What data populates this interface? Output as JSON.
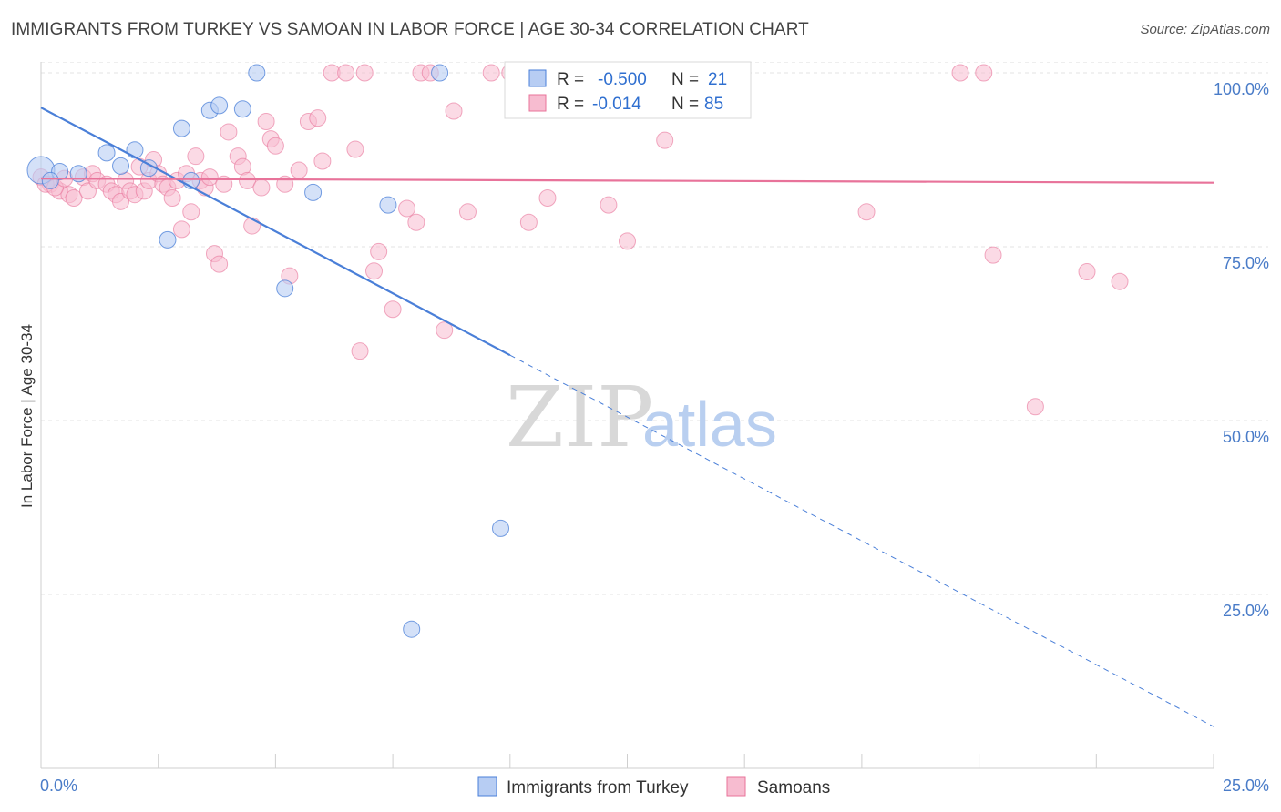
{
  "title": "IMMIGRANTS FROM TURKEY VS SAMOAN IN LABOR FORCE | AGE 30-34 CORRELATION CHART",
  "source": "Source: ZipAtlas.com",
  "watermark": {
    "zip": "ZIP",
    "atlas": "atlas"
  },
  "colors": {
    "turkey": "#4a7fd8",
    "turkey_fill": "#b7cdf3",
    "samoan": "#e8739a",
    "samoan_fill": "#f7bcd0",
    "axis_tick": "#4a7cc8"
  },
  "legend": {
    "rows": [
      {
        "r_label": "R = ",
        "r_value": "-0.500",
        "n_label": "N = ",
        "n_value": "21"
      },
      {
        "r_label": "R = ",
        "r_value": "-0.014",
        "n_label": "N = ",
        "n_value": "85"
      }
    ]
  },
  "chart_data": {
    "type": "scatter",
    "xlabel": "",
    "ylabel": "In Labor Force | Age 30-34",
    "xlim": [
      0,
      25
    ],
    "ylim": [
      0,
      104
    ],
    "x_tick_labels": [
      "0.0%",
      "25.0%"
    ],
    "y_ticks": [
      25,
      50,
      75,
      100
    ],
    "y_tick_labels": [
      "25.0%",
      "50.0%",
      "75.0%",
      "100.0%"
    ],
    "grid": true,
    "legend_position": "top-center",
    "series": [
      {
        "name": "Immigrants from Turkey",
        "points": [
          [
            0.0,
            86.0
          ],
          [
            0.4,
            85.8
          ],
          [
            0.8,
            85.5
          ],
          [
            1.4,
            88.5
          ],
          [
            1.7,
            86.6
          ],
          [
            2.0,
            88.9
          ],
          [
            2.3,
            86.3
          ],
          [
            2.7,
            76.0
          ],
          [
            3.0,
            92.0
          ],
          [
            3.2,
            84.5
          ],
          [
            3.6,
            94.6
          ],
          [
            3.8,
            95.3
          ],
          [
            4.3,
            94.8
          ],
          [
            4.6,
            100.0
          ],
          [
            5.2,
            69.0
          ],
          [
            5.8,
            82.8
          ],
          [
            7.4,
            81.0
          ],
          [
            8.5,
            100.0
          ],
          [
            9.8,
            34.5
          ],
          [
            7.9,
            20.0
          ],
          [
            0.2,
            84.5
          ]
        ],
        "trend": {
          "x0": 0,
          "y0": 95.0,
          "x_solid_end": 10.0,
          "x_end": 25.0,
          "y_end": 6.0
        }
      },
      {
        "name": "Samoans",
        "points": [
          [
            0.0,
            85.0
          ],
          [
            0.2,
            84.0
          ],
          [
            0.4,
            83.0
          ],
          [
            0.6,
            82.5
          ],
          [
            0.7,
            82.0
          ],
          [
            0.9,
            85.0
          ],
          [
            1.0,
            83.0
          ],
          [
            1.1,
            85.5
          ],
          [
            1.2,
            84.5
          ],
          [
            1.4,
            84.0
          ],
          [
            1.5,
            83.0
          ],
          [
            1.6,
            82.5
          ],
          [
            1.7,
            81.5
          ],
          [
            1.8,
            84.5
          ],
          [
            1.9,
            83.0
          ],
          [
            2.0,
            82.5
          ],
          [
            2.1,
            86.5
          ],
          [
            2.2,
            83.0
          ],
          [
            2.3,
            84.5
          ],
          [
            2.4,
            87.5
          ],
          [
            2.5,
            85.5
          ],
          [
            2.6,
            84.0
          ],
          [
            2.7,
            83.5
          ],
          [
            2.8,
            82.0
          ],
          [
            2.9,
            84.5
          ],
          [
            3.0,
            77.5
          ],
          [
            3.1,
            85.5
          ],
          [
            3.2,
            80.0
          ],
          [
            3.3,
            88.0
          ],
          [
            3.4,
            84.5
          ],
          [
            3.5,
            83.5
          ],
          [
            3.6,
            85.0
          ],
          [
            3.7,
            74.0
          ],
          [
            3.8,
            72.5
          ],
          [
            3.9,
            84.0
          ],
          [
            4.0,
            91.5
          ],
          [
            4.2,
            88.0
          ],
          [
            4.3,
            86.5
          ],
          [
            4.4,
            84.5
          ],
          [
            4.5,
            78.0
          ],
          [
            4.7,
            83.5
          ],
          [
            4.8,
            93.0
          ],
          [
            4.9,
            90.5
          ],
          [
            5.0,
            89.5
          ],
          [
            5.2,
            84.0
          ],
          [
            5.3,
            70.8
          ],
          [
            5.5,
            86.0
          ],
          [
            5.7,
            93.0
          ],
          [
            5.9,
            93.5
          ],
          [
            6.0,
            87.3
          ],
          [
            6.2,
            100.0
          ],
          [
            6.5,
            100.0
          ],
          [
            6.7,
            89.0
          ],
          [
            6.8,
            60.0
          ],
          [
            6.9,
            100.0
          ],
          [
            7.1,
            71.5
          ],
          [
            7.2,
            74.3
          ],
          [
            7.5,
            66.0
          ],
          [
            7.8,
            80.5
          ],
          [
            8.0,
            78.5
          ],
          [
            8.1,
            100.0
          ],
          [
            8.3,
            100.0
          ],
          [
            8.6,
            63.0
          ],
          [
            8.8,
            94.5
          ],
          [
            9.1,
            80.0
          ],
          [
            9.6,
            100.0
          ],
          [
            10.0,
            100.0
          ],
          [
            10.4,
            78.5
          ],
          [
            10.8,
            82.0
          ],
          [
            11.1,
            100.0
          ],
          [
            12.1,
            81.0
          ],
          [
            12.5,
            75.8
          ],
          [
            13.3,
            90.3
          ],
          [
            14.2,
            100.0
          ],
          [
            14.7,
            100.0
          ],
          [
            17.6,
            80.0
          ],
          [
            19.6,
            100.0
          ],
          [
            20.1,
            100.0
          ],
          [
            20.3,
            73.8
          ],
          [
            21.2,
            52.0
          ],
          [
            22.3,
            71.4
          ],
          [
            23.0,
            70.0
          ],
          [
            0.1,
            84.0
          ],
          [
            0.3,
            83.5
          ],
          [
            0.5,
            84.8
          ]
        ],
        "trend": {
          "x0": 0,
          "y0": 84.8,
          "x_end": 25.0,
          "y_end": 84.2
        }
      }
    ]
  }
}
